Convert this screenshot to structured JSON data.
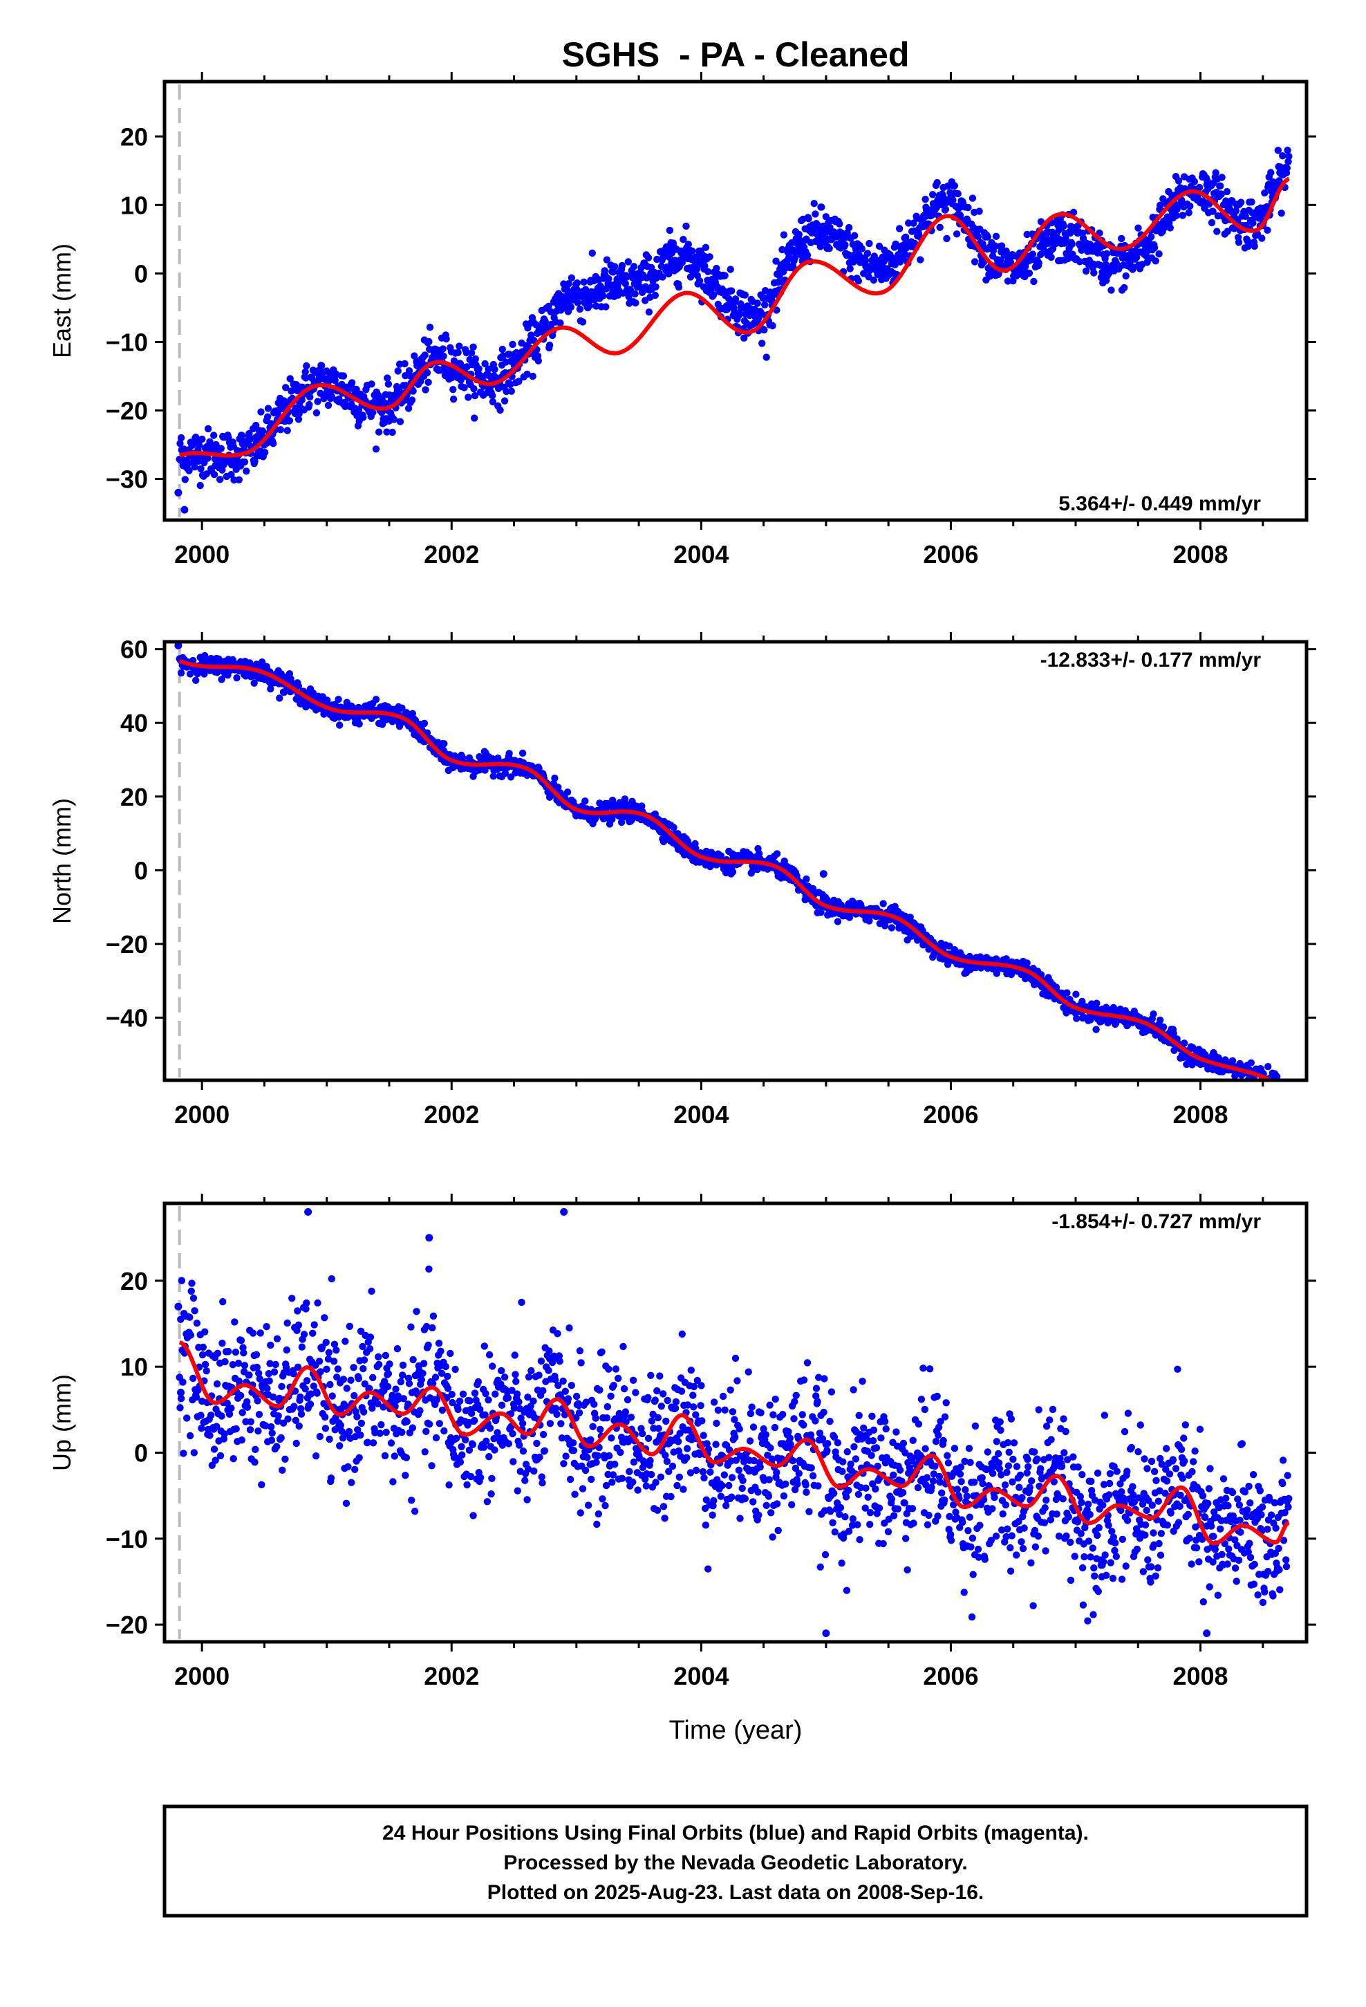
{
  "title": "SGHS  - PA - Cleaned",
  "xlabel": "Time (year)",
  "footer": {
    "line1": "24 Hour Positions Using Final Orbits (blue) and Rapid Orbits (magenta).",
    "line2": "Processed by the Nevada Geodetic Laboratory.",
    "line3": "Plotted on 2025-Aug-23. Last data on 2008-Sep-16."
  },
  "colors": {
    "points": "#0000ff",
    "fit": "#ff0000",
    "marker_line": "#bbbbbb",
    "frame": "#000000"
  },
  "chart_data": [
    {
      "type": "scatter",
      "name": "east",
      "ylabel": "East (mm)",
      "xlim": [
        1999.7,
        2008.85
      ],
      "ylim": [
        -36,
        28
      ],
      "x_ticks": [
        2000,
        2002,
        2004,
        2006,
        2008
      ],
      "y_ticks": [
        -30,
        -20,
        -10,
        0,
        10,
        20
      ],
      "tick_labels": [
        "−30",
        "−20",
        "−10",
        "0",
        "10",
        "20"
      ],
      "rate_label": "5.364+/- 0.449 mm/yr",
      "rate_position": "bottom-right",
      "data_start": 1999.82,
      "data_end": 2008.71,
      "trend": {
        "slope_mm_per_yr": 5.364,
        "value_at_2000": -25.6
      },
      "seasonal": [
        {
          "year": 1999.82,
          "offset": 0.0
        },
        {
          "year": 2000.35,
          "offset": -2.5
        },
        {
          "year": 2000.9,
          "offset": 4.3
        },
        {
          "year": 2001.5,
          "offset": -2.0
        },
        {
          "year": 2001.85,
          "offset": 2.6
        },
        {
          "year": 2002.35,
          "offset": -3.0
        },
        {
          "year": 2002.85,
          "offset": 2.3
        },
        {
          "year": 2003.35,
          "offset": -3.9
        },
        {
          "year": 2003.85,
          "offset": 2.0
        },
        {
          "year": 2004.4,
          "offset": -6.5
        },
        {
          "year": 2004.85,
          "offset": 1.2
        },
        {
          "year": 2005.45,
          "offset": -6.4
        },
        {
          "year": 2005.95,
          "offset": 2.0
        },
        {
          "year": 2006.45,
          "offset": -8.5
        },
        {
          "year": 2006.85,
          "offset": -2.6
        },
        {
          "year": 2007.4,
          "offset": -10.4
        },
        {
          "year": 2007.9,
          "offset": -4.9
        },
        {
          "year": 2008.45,
          "offset": -13.4
        },
        {
          "year": 2008.71,
          "offset": -7.3
        }
      ],
      "scatter": {
        "noise_sd": 1.8,
        "residual_shift": [
          [
            1999.82,
            0
          ],
          [
            2002.7,
            0.5
          ],
          [
            2003.0,
            5.5
          ],
          [
            2003.3,
            10.0
          ],
          [
            2003.7,
            6.0
          ],
          [
            2004.2,
            4.0
          ],
          [
            2004.5,
            1.5
          ],
          [
            2005.0,
            4.5
          ],
          [
            2006.3,
            1.5
          ],
          [
            2006.8,
            -3.5
          ],
          [
            2007.5,
            -2.0
          ],
          [
            2008.2,
            1.0
          ],
          [
            2008.71,
            1.5
          ]
        ]
      },
      "outliers": [
        [
          1999.81,
          -32.0
        ],
        [
          1999.86,
          -34.5
        ],
        [
          1999.85,
          -28.0
        ]
      ]
    },
    {
      "type": "scatter",
      "name": "north",
      "ylabel": "North (mm)",
      "xlim": [
        1999.7,
        2008.85
      ],
      "ylim": [
        -57,
        62
      ],
      "x_ticks": [
        2000,
        2002,
        2004,
        2006,
        2008
      ],
      "y_ticks": [
        -40,
        -20,
        0,
        20,
        40,
        60
      ],
      "tick_labels": [
        "−40",
        "−20",
        "0",
        "20",
        "40",
        "60"
      ],
      "rate_label": "-12.833+/- 0.177 mm/yr",
      "rate_position": "top-right",
      "data_start": 1999.82,
      "data_end": 2008.71,
      "trend": {
        "slope_mm_per_yr": -12.833,
        "value_at_2000": 55.0
      },
      "seasonal": [
        {
          "year": 1999.82,
          "offset": -0.5
        },
        {
          "year": 2000.5,
          "offset": 5.0
        },
        {
          "year": 2001.0,
          "offset": 2.0
        },
        {
          "year": 2001.6,
          "offset": 7.0
        },
        {
          "year": 2002.0,
          "offset": 0.5
        },
        {
          "year": 2002.6,
          "offset": 6.0
        },
        {
          "year": 2003.0,
          "offset": 0.0
        },
        {
          "year": 2003.55,
          "offset": 5.5
        },
        {
          "year": 2004.0,
          "offset": 0.0
        },
        {
          "year": 2004.6,
          "offset": 5.0
        },
        {
          "year": 2005.0,
          "offset": -0.5
        },
        {
          "year": 2005.55,
          "offset": 3.5
        },
        {
          "year": 2006.0,
          "offset": -1.5
        },
        {
          "year": 2006.6,
          "offset": 2.5
        },
        {
          "year": 2007.0,
          "offset": -2.5
        },
        {
          "year": 2007.55,
          "offset": 0.5
        },
        {
          "year": 2008.0,
          "offset": -3.5
        },
        {
          "year": 2008.5,
          "offset": -2.0
        },
        {
          "year": 2008.71,
          "offset": -3.0
        }
      ],
      "scatter": {
        "noise_sd": 1.3,
        "residual_shift": [
          [
            1999.82,
            0
          ],
          [
            2008.71,
            0
          ]
        ]
      },
      "outliers": [
        [
          1999.81,
          61.0
        ],
        [
          2004.98,
          -1.0
        ]
      ]
    },
    {
      "type": "scatter",
      "name": "up",
      "ylabel": "Up (mm)",
      "xlim": [
        1999.7,
        2008.85
      ],
      "ylim": [
        -22,
        29
      ],
      "x_ticks": [
        2000,
        2002,
        2004,
        2006,
        2008
      ],
      "y_ticks": [
        -20,
        -10,
        0,
        10,
        20
      ],
      "tick_labels": [
        "−20",
        "−10",
        "0",
        "10",
        "20"
      ],
      "rate_label": "-1.854+/- 0.727 mm/yr",
      "rate_position": "top-right",
      "data_start": 1999.82,
      "data_end": 2008.71,
      "trend": {
        "slope_mm_per_yr": -1.854,
        "value_at_2000": 8.0
      },
      "seasonal": [
        {
          "year": 1999.82,
          "offset": 4.5
        },
        {
          "year": 2000.1,
          "offset": -2.0
        },
        {
          "year": 2000.35,
          "offset": 0.5
        },
        {
          "year": 2000.6,
          "offset": -1.5
        },
        {
          "year": 2000.85,
          "offset": 3.5
        },
        {
          "year": 2001.1,
          "offset": -1.5
        },
        {
          "year": 2001.35,
          "offset": 1.5
        },
        {
          "year": 2001.6,
          "offset": -0.5
        },
        {
          "year": 2001.85,
          "offset": 3.0
        },
        {
          "year": 2002.1,
          "offset": -2.0
        },
        {
          "year": 2002.4,
          "offset": 1.0
        },
        {
          "year": 2002.6,
          "offset": -1.0
        },
        {
          "year": 2002.85,
          "offset": 3.5
        },
        {
          "year": 2003.1,
          "offset": -1.5
        },
        {
          "year": 2003.35,
          "offset": 1.5
        },
        {
          "year": 2003.6,
          "offset": -1.5
        },
        {
          "year": 2003.85,
          "offset": 3.5
        },
        {
          "year": 2004.1,
          "offset": -1.5
        },
        {
          "year": 2004.35,
          "offset": 0.5
        },
        {
          "year": 2004.6,
          "offset": -1.0
        },
        {
          "year": 2004.85,
          "offset": 2.5
        },
        {
          "year": 2005.1,
          "offset": -2.5
        },
        {
          "year": 2005.35,
          "offset": 0.0
        },
        {
          "year": 2005.6,
          "offset": -1.5
        },
        {
          "year": 2005.85,
          "offset": 2.5
        },
        {
          "year": 2006.1,
          "offset": -3.0
        },
        {
          "year": 2006.35,
          "offset": -0.5
        },
        {
          "year": 2006.6,
          "offset": -2.0
        },
        {
          "year": 2006.85,
          "offset": 2.0
        },
        {
          "year": 2007.1,
          "offset": -3.0
        },
        {
          "year": 2007.35,
          "offset": -0.5
        },
        {
          "year": 2007.6,
          "offset": -1.5
        },
        {
          "year": 2007.85,
          "offset": 2.5
        },
        {
          "year": 2008.1,
          "offset": -3.5
        },
        {
          "year": 2008.35,
          "offset": -1.0
        },
        {
          "year": 2008.6,
          "offset": -2.5
        },
        {
          "year": 2008.71,
          "offset": 0.0
        }
      ],
      "scatter": {
        "noise_sd": 4.2,
        "residual_shift": [
          [
            1999.82,
            0
          ],
          [
            2008.71,
            0
          ]
        ]
      },
      "outliers": [
        [
          1999.81,
          17.0
        ],
        [
          1999.83,
          7.0
        ],
        [
          2000.85,
          28.0
        ],
        [
          2001.82,
          25.0
        ],
        [
          2002.9,
          28.0
        ],
        [
          2005.0,
          -21.0
        ],
        [
          2008.05,
          -21.0
        ]
      ]
    }
  ]
}
